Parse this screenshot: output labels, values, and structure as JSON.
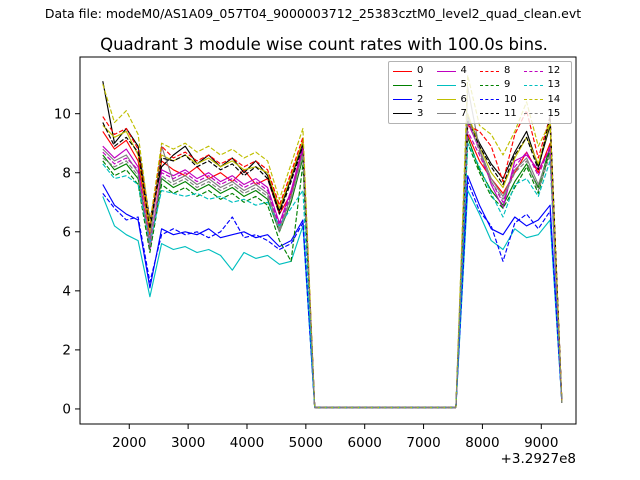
{
  "figure": {
    "header": "Data file: modeM0/AS1A09_057T04_9000003712_25383cztM0_level2_quad_clean.evt",
    "title": "Quadrant 3 module wise count rates with 100.0s bins.",
    "background_color": "#ffffff"
  },
  "chart_data": {
    "type": "line",
    "title": "Quadrant 3 module wise count rates with 100.0s bins.",
    "xlabel": "",
    "ylabel": "",
    "x_offset_label": "+3.2927e8",
    "xlim": [
      1163,
      9590
    ],
    "ylim": [
      -0.51,
      11.92
    ],
    "x_ticks": [
      2000,
      3000,
      4000,
      5000,
      6000,
      7000,
      8000,
      9000
    ],
    "y_ticks": [
      0,
      2,
      4,
      6,
      8,
      10
    ],
    "grid": false,
    "legend": {
      "location": "upper right",
      "columns": 4,
      "labels": [
        "0",
        "1",
        "2",
        "3",
        "4",
        "5",
        "6",
        "7",
        "8",
        "9",
        "10",
        "11",
        "12",
        "13",
        "14",
        "15"
      ]
    },
    "x": [
      1550,
      1750,
      1950,
      2150,
      2350,
      2550,
      2750,
      2950,
      3150,
      3350,
      3550,
      3750,
      3950,
      4150,
      4350,
      4550,
      4750,
      4950,
      5150,
      5350,
      5550,
      5750,
      5950,
      6150,
      6350,
      6550,
      6750,
      6950,
      7150,
      7350,
      7550,
      7750,
      7950,
      8150,
      8350,
      8550,
      8750,
      8950,
      9150,
      9350
    ],
    "series": [
      {
        "name": "0",
        "color": "#ff0000",
        "dash": false,
        "values": [
          9.4,
          8.8,
          9.1,
          8.4,
          5.9,
          8.4,
          8.1,
          7.9,
          8.2,
          7.8,
          8.0,
          7.7,
          8.1,
          7.6,
          7.8,
          6.6,
          7.3,
          8.8,
          0.05,
          0.05,
          0.05,
          0.05,
          0.05,
          0.05,
          0.05,
          0.05,
          0.05,
          0.05,
          0.05,
          0.05,
          0.05,
          9.3,
          8.4,
          7.8,
          7.3,
          8.0,
          8.7,
          8.0,
          9.0,
          0.2
        ]
      },
      {
        "name": "1",
        "color": "#008000",
        "dash": false,
        "values": [
          8.6,
          8.1,
          8.3,
          7.8,
          5.5,
          7.8,
          7.5,
          7.7,
          7.4,
          7.6,
          7.3,
          7.5,
          7.2,
          7.4,
          7.1,
          6.0,
          7.0,
          8.5,
          0.05,
          0.05,
          0.05,
          0.05,
          0.05,
          0.05,
          0.05,
          0.05,
          0.05,
          0.05,
          0.05,
          0.05,
          0.05,
          9.2,
          8.1,
          7.4,
          6.9,
          7.7,
          8.3,
          7.5,
          8.9,
          0.2
        ]
      },
      {
        "name": "2",
        "color": "#0000ff",
        "dash": false,
        "values": [
          7.6,
          6.9,
          6.6,
          6.4,
          4.1,
          6.1,
          5.9,
          6.0,
          5.9,
          6.1,
          5.8,
          5.9,
          6.0,
          5.8,
          5.9,
          5.5,
          5.7,
          6.4,
          0.05,
          0.05,
          0.05,
          0.05,
          0.05,
          0.05,
          0.05,
          0.05,
          0.05,
          0.05,
          0.05,
          0.05,
          0.05,
          7.9,
          6.9,
          6.1,
          5.9,
          6.5,
          6.2,
          6.4,
          6.9,
          0.2
        ]
      },
      {
        "name": "3",
        "color": "#000000",
        "dash": false,
        "values": [
          11.1,
          9.0,
          9.5,
          8.9,
          6.4,
          8.2,
          8.6,
          8.9,
          8.3,
          8.6,
          8.2,
          8.5,
          8.0,
          8.4,
          7.9,
          6.7,
          7.8,
          9.0,
          0.05,
          0.05,
          0.05,
          0.05,
          0.05,
          0.05,
          0.05,
          0.05,
          0.05,
          0.05,
          0.05,
          0.05,
          0.05,
          9.9,
          9.0,
          8.3,
          7.8,
          8.7,
          9.4,
          8.2,
          9.6,
          0.2
        ]
      },
      {
        "name": "4",
        "color": "#bf00bf",
        "dash": false,
        "values": [
          8.9,
          8.5,
          8.8,
          8.2,
          5.4,
          8.1,
          7.9,
          8.1,
          7.8,
          8.0,
          7.7,
          7.9,
          7.6,
          7.8,
          7.5,
          6.3,
          7.4,
          8.9,
          0.05,
          0.05,
          0.05,
          0.05,
          0.05,
          0.05,
          0.05,
          0.05,
          0.05,
          0.05,
          0.05,
          0.05,
          0.05,
          9.7,
          8.8,
          7.6,
          6.8,
          8.4,
          8.6,
          8.1,
          8.8,
          0.2
        ]
      },
      {
        "name": "5",
        "color": "#00bfbf",
        "dash": false,
        "values": [
          7.2,
          6.2,
          5.9,
          5.7,
          3.8,
          5.6,
          5.4,
          5.5,
          5.3,
          5.4,
          5.2,
          4.7,
          5.3,
          5.1,
          5.2,
          4.9,
          5.0,
          6.2,
          0.05,
          0.05,
          0.05,
          0.05,
          0.05,
          0.05,
          0.05,
          0.05,
          0.05,
          0.05,
          0.05,
          0.05,
          0.05,
          7.4,
          6.6,
          5.7,
          5.4,
          6.1,
          5.8,
          5.9,
          6.4,
          0.2
        ]
      },
      {
        "name": "6",
        "color": "#bfbf00",
        "dash": false,
        "values": [
          9.6,
          9.2,
          9.4,
          8.6,
          6.0,
          8.6,
          8.4,
          8.6,
          8.3,
          8.5,
          8.2,
          8.4,
          8.1,
          8.2,
          8.0,
          6.8,
          7.9,
          9.1,
          0.05,
          0.05,
          0.05,
          0.05,
          0.05,
          0.05,
          0.05,
          0.05,
          0.05,
          0.05,
          0.05,
          0.05,
          0.05,
          10.0,
          8.9,
          8.0,
          7.5,
          8.5,
          9.2,
          8.3,
          9.7,
          0.2
        ]
      },
      {
        "name": "7",
        "color": "#808080",
        "dash": false,
        "values": [
          8.8,
          8.4,
          8.6,
          8.0,
          5.7,
          8.9,
          7.7,
          7.9,
          7.6,
          7.8,
          7.5,
          7.7,
          7.4,
          7.6,
          7.3,
          6.1,
          7.2,
          8.7,
          0.05,
          0.05,
          0.05,
          0.05,
          0.05,
          0.05,
          0.05,
          0.05,
          0.05,
          0.05,
          0.05,
          0.05,
          0.05,
          10.9,
          8.8,
          7.8,
          7.2,
          8.1,
          8.5,
          7.6,
          8.7,
          0.2
        ]
      },
      {
        "name": "8",
        "color": "#ff0000",
        "dash": true,
        "values": [
          9.9,
          9.3,
          9.5,
          8.8,
          6.2,
          8.9,
          8.5,
          8.7,
          8.4,
          8.6,
          8.3,
          8.5,
          8.2,
          8.4,
          8.1,
          6.9,
          8.0,
          9.2,
          0.05,
          0.05,
          0.05,
          0.05,
          0.05,
          0.05,
          0.05,
          0.05,
          0.05,
          0.05,
          0.05,
          0.05,
          0.05,
          9.6,
          9.4,
          8.9,
          7.7,
          9.3,
          10.1,
          8.5,
          9.9,
          0.2
        ]
      },
      {
        "name": "9",
        "color": "#008000",
        "dash": true,
        "values": [
          8.4,
          7.9,
          8.1,
          7.6,
          5.3,
          7.6,
          7.3,
          7.5,
          7.2,
          7.4,
          7.1,
          7.3,
          7.0,
          7.2,
          6.9,
          5.7,
          5.0,
          8.3,
          0.05,
          0.05,
          0.05,
          0.05,
          0.05,
          0.05,
          0.05,
          0.05,
          0.05,
          0.05,
          0.05,
          0.05,
          0.05,
          9.0,
          8.0,
          7.2,
          6.8,
          7.5,
          8.2,
          7.3,
          8.8,
          0.2
        ]
      },
      {
        "name": "10",
        "color": "#0000ff",
        "dash": true,
        "values": [
          7.3,
          6.8,
          6.4,
          6.5,
          4.3,
          5.9,
          6.1,
          5.9,
          6.0,
          5.8,
          6.0,
          6.5,
          5.8,
          5.9,
          5.7,
          5.4,
          5.6,
          6.3,
          0.05,
          0.05,
          0.05,
          0.05,
          0.05,
          0.05,
          0.05,
          0.05,
          0.05,
          0.05,
          0.05,
          0.05,
          0.05,
          7.7,
          6.7,
          6.2,
          5.0,
          6.3,
          6.6,
          6.1,
          6.7,
          0.2
        ]
      },
      {
        "name": "11",
        "color": "#000000",
        "dash": true,
        "values": [
          9.7,
          8.9,
          9.2,
          8.7,
          6.1,
          8.5,
          8.4,
          8.6,
          8.2,
          8.4,
          8.1,
          8.3,
          7.9,
          8.2,
          7.8,
          6.6,
          7.7,
          8.9,
          0.05,
          0.05,
          0.05,
          0.05,
          0.05,
          0.05,
          0.05,
          0.05,
          0.05,
          0.05,
          0.05,
          0.05,
          0.05,
          9.8,
          8.9,
          8.2,
          7.6,
          8.6,
          9.2,
          8.1,
          9.9,
          0.2
        ]
      },
      {
        "name": "12",
        "color": "#bf00bf",
        "dash": true,
        "values": [
          8.7,
          8.3,
          8.5,
          8.1,
          5.6,
          8.0,
          7.8,
          8.0,
          7.7,
          7.9,
          7.6,
          7.8,
          7.5,
          7.7,
          7.4,
          6.2,
          7.3,
          8.8,
          0.05,
          0.05,
          0.05,
          0.05,
          0.05,
          0.05,
          0.05,
          0.05,
          0.05,
          0.05,
          0.05,
          0.05,
          0.05,
          9.4,
          8.6,
          7.7,
          7.0,
          8.2,
          8.7,
          7.9,
          8.9,
          0.2
        ]
      },
      {
        "name": "13",
        "color": "#00bfbf",
        "dash": true,
        "values": [
          8.3,
          7.8,
          7.9,
          7.6,
          5.6,
          7.4,
          7.3,
          7.2,
          7.3,
          7.1,
          7.2,
          7.0,
          7.1,
          6.9,
          7.0,
          6.2,
          6.8,
          7.4,
          0.05,
          0.05,
          0.05,
          0.05,
          0.05,
          0.05,
          0.05,
          0.05,
          0.05,
          0.05,
          0.05,
          0.05,
          0.05,
          9.0,
          8.2,
          7.3,
          6.5,
          7.6,
          7.8,
          7.2,
          8.4,
          0.2
        ]
      },
      {
        "name": "14",
        "color": "#bfbf00",
        "dash": true,
        "values": [
          11.0,
          9.7,
          10.1,
          9.3,
          6.3,
          9.0,
          8.8,
          9.0,
          8.7,
          8.9,
          8.6,
          8.8,
          8.5,
          8.7,
          8.4,
          7.1,
          8.3,
          9.5,
          0.05,
          0.05,
          0.05,
          0.05,
          0.05,
          0.05,
          0.05,
          0.05,
          0.05,
          0.05,
          0.05,
          0.05,
          0.05,
          11.3,
          9.6,
          9.3,
          8.6,
          9.4,
          10.4,
          8.9,
          9.7,
          0.2
        ]
      },
      {
        "name": "15",
        "color": "#808080",
        "dash": true,
        "values": [
          8.5,
          8.2,
          8.4,
          7.9,
          5.5,
          7.9,
          7.6,
          7.8,
          7.5,
          7.7,
          7.4,
          7.6,
          7.3,
          7.5,
          7.2,
          6.0,
          7.1,
          8.6,
          0.05,
          0.05,
          0.05,
          0.05,
          0.05,
          0.05,
          0.05,
          0.05,
          0.05,
          0.05,
          0.05,
          0.05,
          0.05,
          9.9,
          8.7,
          7.7,
          7.1,
          8.0,
          8.4,
          7.4,
          8.6,
          0.2
        ]
      }
    ]
  }
}
